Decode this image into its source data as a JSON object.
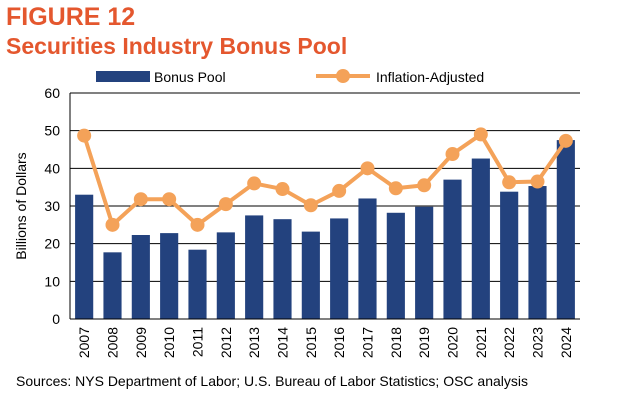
{
  "figure": {
    "label": "FIGURE 12",
    "title": "Securities Industry Bonus Pool"
  },
  "source_note": "Sources: NYS Department of Labor; U.S. Bureau of Labor Statistics; OSC analysis",
  "colors": {
    "title": "#e4572e",
    "bar": "#23427e",
    "line": "#f4a259",
    "grid": "#000000"
  },
  "chart_data": {
    "type": "bar",
    "categories": [
      "2007",
      "2008",
      "2009",
      "2010",
      "2011",
      "2012",
      "2013",
      "2014",
      "2015",
      "2016",
      "2017",
      "2018",
      "2019",
      "2020",
      "2021",
      "2022",
      "2023",
      "2024"
    ],
    "series": [
      {
        "name": "Bonus Pool",
        "type": "bar",
        "values": [
          33,
          17.7,
          22.3,
          22.8,
          18.4,
          23,
          27.5,
          26.5,
          23.2,
          26.7,
          32,
          28.2,
          29.8,
          37,
          42.6,
          33.8,
          35.3,
          47.5
        ]
      },
      {
        "name": "Inflation-Adjusted",
        "type": "line",
        "values": [
          48.7,
          25,
          31.8,
          31.8,
          25,
          30.5,
          36,
          34.5,
          30.2,
          34,
          40,
          34.7,
          35.5,
          43.8,
          49,
          36.3,
          36.5,
          47.3
        ]
      }
    ],
    "ylabel": "Billions of Dollars",
    "ylim": [
      0,
      60
    ],
    "yticks": [
      0,
      10,
      20,
      30,
      40,
      50,
      60
    ],
    "grid": true,
    "legend": "top"
  }
}
